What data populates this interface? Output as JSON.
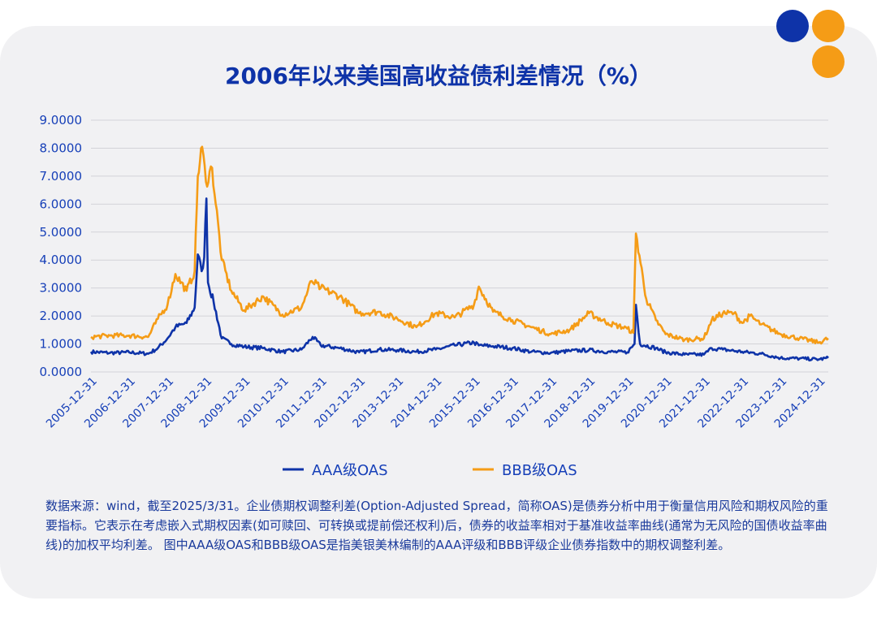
{
  "decor": {
    "dots": [
      "#0e33a8",
      "#f59c16",
      "#f59c16"
    ]
  },
  "chart_data": {
    "type": "line",
    "title": "2006年以来美国高收益债利差情况（%）",
    "ylim": [
      0,
      9
    ],
    "yticks": [
      "0.0000",
      "1.0000",
      "2.0000",
      "3.0000",
      "4.0000",
      "5.0000",
      "6.0000",
      "7.0000",
      "8.0000",
      "9.0000"
    ],
    "xlabels": [
      "2005-12-31",
      "2006-12-31",
      "2007-12-31",
      "2008-12-31",
      "2009-12-31",
      "2010-12-31",
      "2011-12-31",
      "2012-12-31",
      "2013-12-31",
      "2014-12-31",
      "2015-12-31",
      "2016-12-31",
      "2017-12-31",
      "2018-12-31",
      "2019-12-31",
      "2020-12-31",
      "2021-12-31",
      "2022-12-31",
      "2023-12-31",
      "2024-12-31"
    ],
    "xrange": [
      "2005-12-31",
      "2025-03-31"
    ],
    "grid": true,
    "legend_position": "bottom",
    "series": [
      {
        "name": "AAA级OAS",
        "color": "#0e33a8",
        "points": [
          [
            "2005-12-31",
            0.72
          ],
          [
            "2006-06-30",
            0.68
          ],
          [
            "2006-12-31",
            0.7
          ],
          [
            "2007-06-30",
            0.65
          ],
          [
            "2007-09-30",
            0.85
          ],
          [
            "2007-12-31",
            1.2
          ],
          [
            "2008-03-15",
            1.6
          ],
          [
            "2008-06-30",
            1.75
          ],
          [
            "2008-09-15",
            2.3
          ],
          [
            "2008-10-15",
            4.2
          ],
          [
            "2008-11-20",
            3.6
          ],
          [
            "2008-12-15",
            4.1
          ],
          [
            "2009-01-05",
            6.2
          ],
          [
            "2009-01-20",
            3.2
          ],
          [
            "2009-03-15",
            2.5
          ],
          [
            "2009-05-31",
            1.2
          ],
          [
            "2009-08-31",
            1.0
          ],
          [
            "2009-12-31",
            0.9
          ],
          [
            "2010-06-30",
            0.85
          ],
          [
            "2010-12-31",
            0.72
          ],
          [
            "2011-06-30",
            0.8
          ],
          [
            "2011-10-15",
            1.25
          ],
          [
            "2011-12-31",
            0.95
          ],
          [
            "2012-06-30",
            0.85
          ],
          [
            "2012-12-31",
            0.7
          ],
          [
            "2013-06-30",
            0.8
          ],
          [
            "2013-12-31",
            0.78
          ],
          [
            "2014-06-30",
            0.72
          ],
          [
            "2014-12-31",
            0.8
          ],
          [
            "2015-06-30",
            0.95
          ],
          [
            "2015-12-31",
            1.05
          ],
          [
            "2016-02-15",
            0.95
          ],
          [
            "2016-06-30",
            0.92
          ],
          [
            "2016-12-31",
            0.85
          ],
          [
            "2017-06-30",
            0.72
          ],
          [
            "2017-12-31",
            0.68
          ],
          [
            "2018-06-30",
            0.75
          ],
          [
            "2018-12-31",
            0.78
          ],
          [
            "2019-06-30",
            0.72
          ],
          [
            "2019-12-31",
            0.7
          ],
          [
            "2020-03-10",
            1.0
          ],
          [
            "2020-03-23",
            2.4
          ],
          [
            "2020-05-01",
            1.0
          ],
          [
            "2020-09-30",
            0.85
          ],
          [
            "2020-12-31",
            0.7
          ],
          [
            "2021-06-30",
            0.62
          ],
          [
            "2021-12-31",
            0.62
          ],
          [
            "2022-03-15",
            0.85
          ],
          [
            "2022-06-30",
            0.8
          ],
          [
            "2022-12-31",
            0.72
          ],
          [
            "2023-06-30",
            0.65
          ],
          [
            "2023-12-31",
            0.5
          ],
          [
            "2024-06-30",
            0.48
          ],
          [
            "2024-12-31",
            0.45
          ],
          [
            "2025-03-31",
            0.5
          ]
        ]
      },
      {
        "name": "BBB级OAS",
        "color": "#f59c16",
        "points": [
          [
            "2005-12-31",
            1.25
          ],
          [
            "2006-06-30",
            1.3
          ],
          [
            "2006-12-31",
            1.3
          ],
          [
            "2007-06-30",
            1.25
          ],
          [
            "2007-09-30",
            1.9
          ],
          [
            "2007-12-31",
            2.4
          ],
          [
            "2008-03-15",
            3.5
          ],
          [
            "2008-06-30",
            2.9
          ],
          [
            "2008-09-15",
            3.6
          ],
          [
            "2008-10-15",
            7.0
          ],
          [
            "2008-11-25",
            8.05
          ],
          [
            "2008-12-31",
            6.8
          ],
          [
            "2009-02-28",
            7.3
          ],
          [
            "2009-05-31",
            4.0
          ],
          [
            "2009-08-31",
            2.9
          ],
          [
            "2009-12-31",
            2.2
          ],
          [
            "2010-06-30",
            2.7
          ],
          [
            "2010-12-31",
            2.05
          ],
          [
            "2011-06-30",
            2.3
          ],
          [
            "2011-10-05",
            3.25
          ],
          [
            "2011-12-31",
            3.0
          ],
          [
            "2012-06-30",
            2.7
          ],
          [
            "2012-12-31",
            2.1
          ],
          [
            "2013-06-30",
            2.15
          ],
          [
            "2013-12-31",
            1.9
          ],
          [
            "2014-06-30",
            1.6
          ],
          [
            "2014-12-31",
            2.1
          ],
          [
            "2015-06-30",
            1.95
          ],
          [
            "2015-12-31",
            2.4
          ],
          [
            "2016-02-15",
            3.05
          ],
          [
            "2016-06-30",
            2.15
          ],
          [
            "2016-12-31",
            1.85
          ],
          [
            "2017-06-30",
            1.6
          ],
          [
            "2017-12-31",
            1.35
          ],
          [
            "2018-06-30",
            1.5
          ],
          [
            "2018-12-31",
            2.1
          ],
          [
            "2019-06-30",
            1.75
          ],
          [
            "2019-12-31",
            1.55
          ],
          [
            "2020-02-28",
            1.4
          ],
          [
            "2020-03-23",
            4.95
          ],
          [
            "2020-06-30",
            2.6
          ],
          [
            "2020-09-30",
            1.85
          ],
          [
            "2020-12-31",
            1.35
          ],
          [
            "2021-06-30",
            1.15
          ],
          [
            "2021-12-31",
            1.2
          ],
          [
            "2022-03-15",
            1.85
          ],
          [
            "2022-06-30",
            2.1
          ],
          [
            "2022-10-15",
            2.1
          ],
          [
            "2022-12-31",
            1.75
          ],
          [
            "2023-03-15",
            2.0
          ],
          [
            "2023-06-30",
            1.7
          ],
          [
            "2023-12-31",
            1.35
          ],
          [
            "2024-06-30",
            1.2
          ],
          [
            "2024-12-31",
            1.05
          ],
          [
            "2025-03-31",
            1.2
          ]
        ]
      }
    ]
  },
  "note": "数据来源：wind，截至2025/3/31。企业债期权调整利差(Option-Adjusted Spread，简称OAS)是债券分析中用于衡量信用风险和期权风险的重要指标。它表示在考虑嵌入式期权因素(如可赎回、可转换或提前偿还权利)后，债券的收益率相对于基准收益率曲线(通常为无风险的国债收益率曲线)的加权平均利差。 图中AAA级OAS和BBB级OAS是指美银美林编制的AAA评级和BBB评级企业债券指数中的期权调整利差。"
}
